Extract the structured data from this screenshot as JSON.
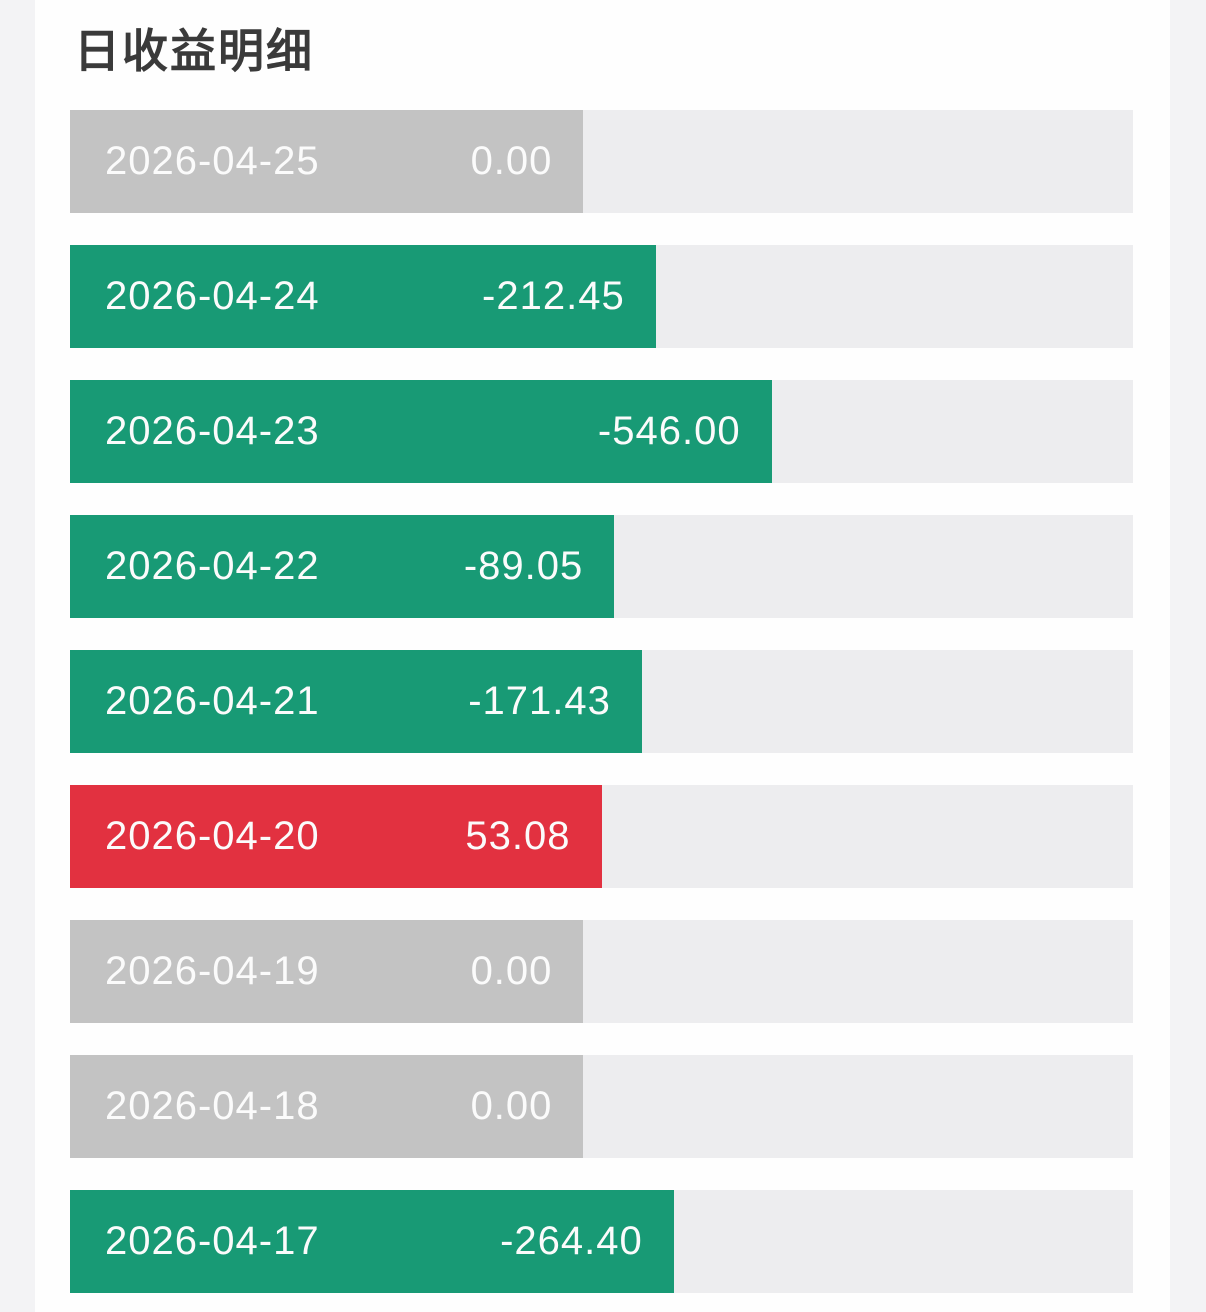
{
  "page": {
    "title": "日收益明细"
  },
  "chart_data": {
    "type": "bar",
    "orientation": "horizontal",
    "title": "日收益明细",
    "categories": [
      "2026-04-25",
      "2026-04-24",
      "2026-04-23",
      "2026-04-22",
      "2026-04-21",
      "2026-04-20",
      "2026-04-19",
      "2026-04-18",
      "2026-04-17"
    ],
    "values": [
      0.0,
      -212.45,
      -546.0,
      -89.05,
      -171.43,
      53.08,
      0.0,
      0.0,
      -264.4
    ],
    "value_range_depicted": [
      -546.0,
      53.08
    ],
    "legend": "none",
    "grid": "off",
    "colors": {
      "green": "#189a75",
      "red": "#e23140",
      "gray": "#c3c3c3",
      "track": "#ededef",
      "bar_text": "#fbfbfb",
      "title_text": "#3a3a3a",
      "card_bg": "#fefefe",
      "page_bg": "#f3f3f5"
    },
    "rows": [
      {
        "date": "2026-04-25",
        "value": "0.00",
        "color": "gray",
        "bar_width_pct": 48.3
      },
      {
        "date": "2026-04-24",
        "value": "-212.45",
        "color": "green",
        "bar_width_pct": 55.1
      },
      {
        "date": "2026-04-23",
        "value": "-546.00",
        "color": "green",
        "bar_width_pct": 66.0
      },
      {
        "date": "2026-04-22",
        "value": "-89.05",
        "color": "green",
        "bar_width_pct": 51.2
      },
      {
        "date": "2026-04-21",
        "value": "-171.43",
        "color": "green",
        "bar_width_pct": 53.8
      },
      {
        "date": "2026-04-20",
        "value": "53.08",
        "color": "red",
        "bar_width_pct": 50.0
      },
      {
        "date": "2026-04-19",
        "value": "0.00",
        "color": "gray",
        "bar_width_pct": 48.3
      },
      {
        "date": "2026-04-18",
        "value": "0.00",
        "color": "gray",
        "bar_width_pct": 48.3
      },
      {
        "date": "2026-04-17",
        "value": "-264.40",
        "color": "green",
        "bar_width_pct": 56.8
      }
    ]
  }
}
